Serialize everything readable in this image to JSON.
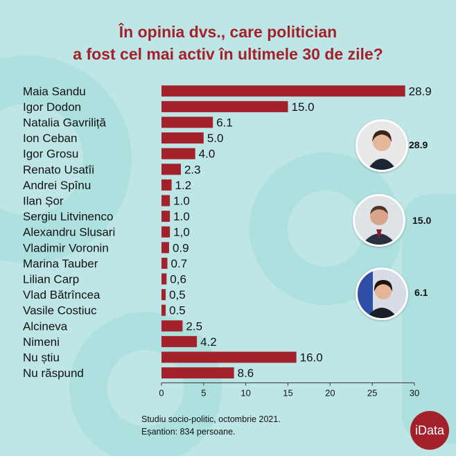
{
  "title": {
    "line1": "În opinia dvs., care politician",
    "line2": "a fost cel mai activ în ultimele 30 de zile?"
  },
  "chart_data": {
    "type": "bar",
    "orientation": "horizontal",
    "categories": [
      "Maia Sandu",
      "Igor Dodon",
      "Natalia Gavriliță",
      "Ion Ceban",
      "Igor Grosu",
      "Renato Usatîi",
      "Andrei Spînu",
      "Ilan Șor",
      "Sergiu Litvinenco",
      "Alexandru Slusari",
      "Vladimir Voronin",
      "Marina Tauber",
      "Lilian Carp",
      "Vlad Bătrîncea",
      "Vasile Costiuc",
      "Alcineva",
      "Nimeni",
      "Nu știu",
      "Nu răspund"
    ],
    "values": [
      28.9,
      15.0,
      6.1,
      5.0,
      4.0,
      2.3,
      1.2,
      1.0,
      1.0,
      1.0,
      0.9,
      0.7,
      0.6,
      0.5,
      0.5,
      2.5,
      4.2,
      16.0,
      8.6
    ],
    "value_labels": [
      "28.9",
      "15.0",
      "6.1",
      "5.0",
      "4.0",
      "2.3",
      "1.2",
      "1.0",
      "1.0",
      "1,0",
      "0.9",
      "0.7",
      "0,6",
      "0,5",
      "0.5",
      "2.5",
      "4.2",
      "16.0",
      "8.6"
    ],
    "xlim": [
      0,
      30
    ],
    "xticks": [
      "0",
      "5",
      "10",
      "15",
      "20",
      "25",
      "30"
    ],
    "xlabel": "",
    "ylabel": "",
    "grid": false,
    "bar_color": "#a3212a"
  },
  "portraits": [
    {
      "value": "28.9",
      "icon": "portrait-maia-sandu-icon"
    },
    {
      "value": "15.0",
      "icon": "portrait-igor-dodon-icon"
    },
    {
      "value": "6.1",
      "icon": "portrait-natalia-gavrilita-icon"
    }
  ],
  "footer": {
    "line1": "Studiu socio-politic, octombrie 2021.",
    "line2": "Eșantion: 834 persoane."
  },
  "logo": {
    "text": "iData"
  },
  "colors": {
    "background": "#bfe6e6",
    "accent": "#a3212a"
  }
}
